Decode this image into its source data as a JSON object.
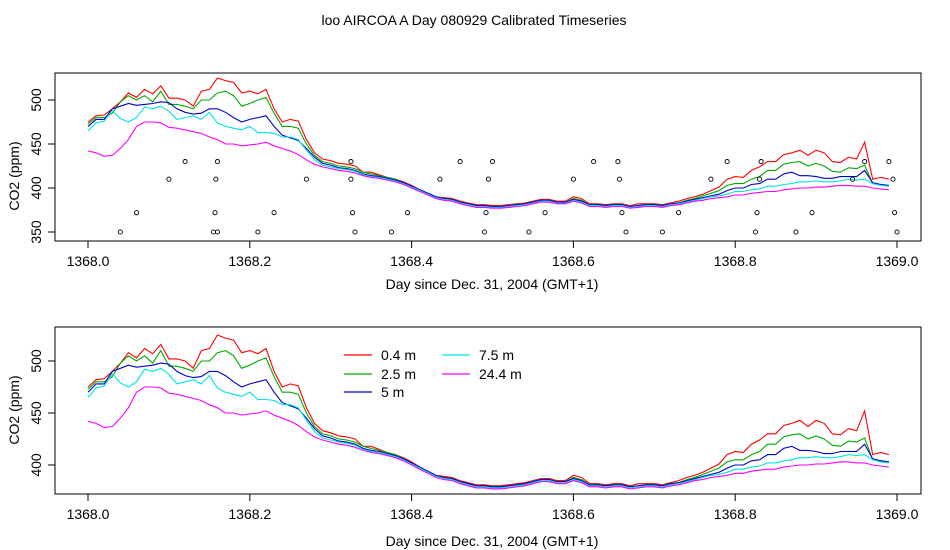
{
  "title": "loo AIRCOA A  Day 080929  Calibrated Timeseries",
  "chart_data": [
    {
      "type": "line",
      "xlabel": "Day since Dec. 31, 2004 (GMT+1)",
      "ylabel": "CO2 (ppm)",
      "xlim": [
        1368.0,
        1369.0
      ],
      "ylim": [
        345,
        530
      ],
      "xticks": [
        1368.0,
        1368.2,
        1368.4,
        1368.6,
        1368.8,
        1369.0
      ],
      "xtick_labels": [
        "1368.0",
        "1368.2",
        "1368.4",
        "1368.6",
        "1368.8",
        "1369.0"
      ],
      "yticks": [
        350,
        400,
        450,
        500
      ],
      "ytick_labels": [
        "350",
        "400",
        "450",
        "500"
      ],
      "x": [
        1368.0,
        1368.01,
        1368.02,
        1368.03,
        1368.04,
        1368.05,
        1368.06,
        1368.07,
        1368.08,
        1368.09,
        1368.1,
        1368.11,
        1368.12,
        1368.13,
        1368.14,
        1368.15,
        1368.16,
        1368.17,
        1368.18,
        1368.19,
        1368.2,
        1368.21,
        1368.22,
        1368.23,
        1368.24,
        1368.25,
        1368.26,
        1368.27,
        1368.28,
        1368.29,
        1368.3,
        1368.31,
        1368.32,
        1368.33,
        1368.34,
        1368.35,
        1368.36,
        1368.37,
        1368.38,
        1368.39,
        1368.4,
        1368.41,
        1368.42,
        1368.43,
        1368.44,
        1368.45,
        1368.46,
        1368.47,
        1368.48,
        1368.49,
        1368.5,
        1368.51,
        1368.52,
        1368.53,
        1368.54,
        1368.55,
        1368.56,
        1368.57,
        1368.58,
        1368.59,
        1368.6,
        1368.61,
        1368.62,
        1368.63,
        1368.64,
        1368.65,
        1368.66,
        1368.67,
        1368.68,
        1368.69,
        1368.7,
        1368.71,
        1368.72,
        1368.73,
        1368.74,
        1368.75,
        1368.76,
        1368.77,
        1368.78,
        1368.79,
        1368.8,
        1368.81,
        1368.82,
        1368.83,
        1368.84,
        1368.85,
        1368.86,
        1368.87,
        1368.88,
        1368.89,
        1368.9,
        1368.91,
        1368.92,
        1368.93,
        1368.94,
        1368.95,
        1368.96,
        1368.97,
        1368.98,
        1368.99
      ],
      "series": [
        {
          "name": "0.4 m",
          "color": "#ff0000",
          "values": [
            475,
            482,
            483,
            490,
            498,
            508,
            503,
            512,
            507,
            516,
            502,
            502,
            500,
            493,
            510,
            512,
            525,
            522,
            520,
            508,
            510,
            507,
            512,
            490,
            475,
            478,
            476,
            455,
            440,
            433,
            431,
            428,
            427,
            425,
            418,
            418,
            415,
            412,
            410,
            407,
            403,
            398,
            394,
            390,
            389,
            388,
            385,
            383,
            381,
            381,
            380,
            380,
            381,
            382,
            383,
            385,
            387,
            387,
            385,
            385,
            390,
            388,
            382,
            382,
            381,
            382,
            382,
            380,
            382,
            382,
            382,
            381,
            383,
            385,
            388,
            390,
            393,
            397,
            401,
            410,
            413,
            412,
            420,
            424,
            430,
            430,
            438,
            440,
            443,
            437,
            443,
            440,
            430,
            429,
            435,
            433,
            452,
            410,
            412,
            410
          ]
        },
        {
          "name": "2.5 m",
          "color": "#00aa00",
          "values": [
            473,
            480,
            480,
            485,
            498,
            505,
            500,
            505,
            498,
            510,
            495,
            495,
            493,
            490,
            500,
            500,
            508,
            510,
            505,
            493,
            496,
            500,
            503,
            485,
            470,
            470,
            468,
            450,
            437,
            430,
            428,
            425,
            424,
            422,
            418,
            416,
            414,
            412,
            410,
            406,
            402,
            398,
            394,
            390,
            388,
            387,
            384,
            382,
            380,
            380,
            379,
            379,
            380,
            381,
            382,
            384,
            386,
            386,
            384,
            384,
            388,
            386,
            381,
            381,
            380,
            381,
            381,
            379,
            380,
            381,
            381,
            380,
            382,
            383,
            386,
            388,
            391,
            394,
            397,
            403,
            405,
            405,
            410,
            413,
            420,
            420,
            427,
            429,
            430,
            425,
            428,
            425,
            419,
            418,
            423,
            422,
            426,
            405,
            404,
            403
          ]
        },
        {
          "name": "5 m",
          "color": "#0000cc",
          "values": [
            470,
            478,
            478,
            490,
            493,
            496,
            494,
            495,
            496,
            498,
            497,
            490,
            486,
            484,
            485,
            490,
            490,
            486,
            480,
            475,
            478,
            480,
            482,
            470,
            460,
            457,
            454,
            445,
            435,
            428,
            426,
            423,
            422,
            420,
            416,
            414,
            413,
            411,
            409,
            406,
            402,
            398,
            394,
            390,
            388,
            387,
            384,
            382,
            380,
            380,
            379,
            379,
            380,
            381,
            382,
            384,
            386,
            386,
            384,
            384,
            387,
            385,
            381,
            381,
            380,
            381,
            381,
            379,
            380,
            381,
            381,
            380,
            382,
            383,
            385,
            387,
            389,
            391,
            393,
            397,
            400,
            400,
            404,
            405,
            410,
            410,
            416,
            418,
            414,
            414,
            413,
            411,
            411,
            413,
            413,
            413,
            420,
            406,
            404,
            403
          ]
        },
        {
          "name": "7.5 m",
          "color": "#00e5e5",
          "values": [
            465,
            474,
            476,
            488,
            479,
            475,
            480,
            492,
            490,
            493,
            487,
            478,
            480,
            482,
            478,
            486,
            474,
            470,
            468,
            466,
            470,
            463,
            463,
            462,
            458,
            458,
            455,
            443,
            432,
            426,
            424,
            422,
            421,
            419,
            415,
            413,
            412,
            410,
            408,
            405,
            401,
            397,
            393,
            389,
            387,
            386,
            383,
            381,
            379,
            379,
            378,
            378,
            379,
            380,
            381,
            383,
            385,
            385,
            383,
            383,
            386,
            384,
            380,
            380,
            379,
            380,
            380,
            378,
            379,
            380,
            380,
            379,
            381,
            382,
            384,
            386,
            388,
            390,
            391,
            393,
            396,
            396,
            398,
            399,
            402,
            402,
            404,
            405,
            407,
            407,
            408,
            407,
            407,
            408,
            410,
            409,
            410,
            405,
            403,
            402
          ]
        },
        {
          "name": "24.4 m",
          "color": "#ff00ff",
          "values": [
            442,
            440,
            436,
            437,
            445,
            455,
            470,
            475,
            475,
            474,
            469,
            468,
            466,
            464,
            462,
            458,
            455,
            450,
            450,
            448,
            449,
            450,
            452,
            448,
            445,
            442,
            438,
            432,
            427,
            424,
            422,
            420,
            419,
            417,
            414,
            412,
            411,
            409,
            407,
            404,
            400,
            396,
            392,
            388,
            386,
            385,
            382,
            380,
            378,
            378,
            377,
            377,
            378,
            379,
            380,
            382,
            384,
            384,
            382,
            382,
            385,
            383,
            379,
            379,
            378,
            379,
            379,
            377,
            378,
            379,
            379,
            378,
            380,
            381,
            383,
            385,
            386,
            388,
            389,
            390,
            392,
            392,
            394,
            395,
            396,
            396,
            398,
            399,
            400,
            400,
            401,
            401,
            402,
            403,
            403,
            402,
            402,
            400,
            399,
            398
          ]
        }
      ],
      "scatter_series": {
        "name": "points",
        "x": [
          1368.04,
          1368.06,
          1368.1,
          1368.12,
          1368.155,
          1368.157,
          1368.158,
          1368.16,
          1368.16,
          1368.21,
          1368.23,
          1368.27,
          1368.325,
          1368.325,
          1368.327,
          1368.33,
          1368.375,
          1368.395,
          1368.435,
          1368.46,
          1368.49,
          1368.492,
          1368.495,
          1368.5,
          1368.545,
          1368.565,
          1368.6,
          1368.625,
          1368.655,
          1368.657,
          1368.66,
          1368.665,
          1368.71,
          1368.73,
          1368.77,
          1368.79,
          1368.825,
          1368.827,
          1368.83,
          1368.832,
          1368.875,
          1368.895,
          1368.945,
          1368.96,
          1368.99,
          1368.995,
          1368.997,
          1369.0
        ],
        "y": [
          350,
          372,
          410,
          430,
          350,
          372,
          410,
          430,
          350,
          350,
          372,
          410,
          430,
          410,
          372,
          350,
          350,
          372,
          410,
          430,
          350,
          372,
          410,
          430,
          350,
          372,
          410,
          430,
          430,
          410,
          372,
          350,
          350,
          372,
          410,
          430,
          350,
          372,
          410,
          430,
          350,
          372,
          410,
          430,
          430,
          410,
          372,
          350
        ]
      }
    },
    {
      "type": "line",
      "xlabel": "Day since Dec. 31, 2004 (GMT+1)",
      "ylabel": "CO2 (ppm)",
      "xlim": [
        1368.0,
        1369.0
      ],
      "ylim": [
        372,
        530
      ],
      "xticks": [
        1368.0,
        1368.2,
        1368.4,
        1368.6,
        1368.8,
        1369.0
      ],
      "xtick_labels": [
        "1368.0",
        "1368.2",
        "1368.4",
        "1368.6",
        "1368.8",
        "1369.0"
      ],
      "yticks": [
        400,
        450,
        500
      ],
      "ytick_labels": [
        "400",
        "450",
        "500"
      ],
      "legend": {
        "placement": "top-center",
        "entries": [
          {
            "label": "0.4 m",
            "color": "#ff0000"
          },
          {
            "label": "2.5 m",
            "color": "#00aa00"
          },
          {
            "label": "5 m",
            "color": "#0000cc"
          },
          {
            "label": "7.5 m",
            "color": "#00e5e5"
          },
          {
            "label": "24.4 m",
            "color": "#ff00ff"
          }
        ]
      },
      "series_ref": 0
    }
  ]
}
